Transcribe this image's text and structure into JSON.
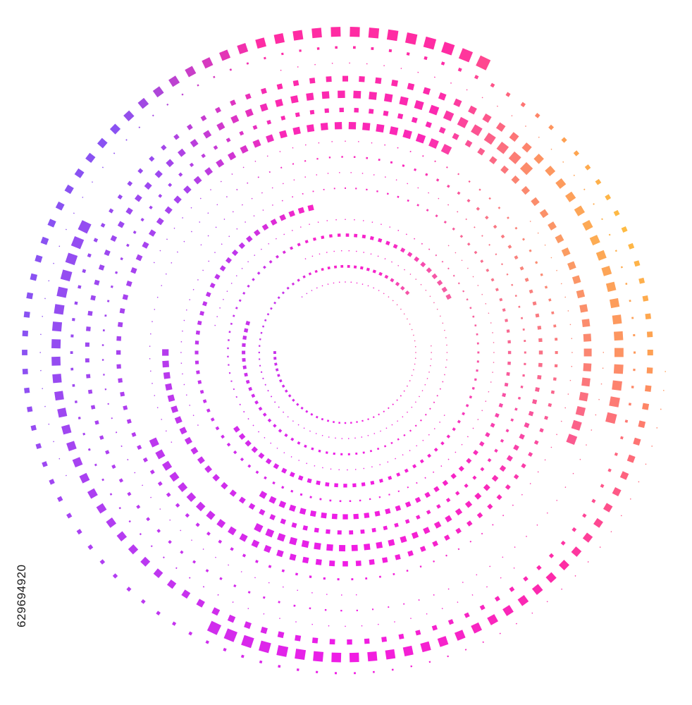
{
  "stock_id": "629694920",
  "artwork": {
    "subject": "halftone-dotted-spiral-rings",
    "gradient_colors": {
      "orange": "#ffa64d",
      "yellow": "#ffc43a",
      "pink": "#ff2ca3",
      "magenta": "#f01ce6",
      "purple": "#b43cf2",
      "violet": "#8a52f2",
      "blue": "#4f84f4"
    },
    "background": "#ffffff"
  }
}
